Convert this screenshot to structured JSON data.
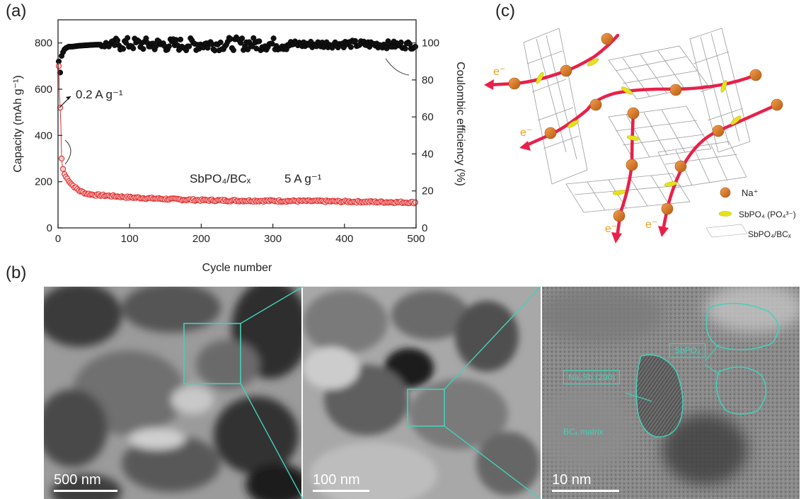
{
  "panels": {
    "a": "(a)",
    "b": "(b)",
    "c": "(c)"
  },
  "chart_data": {
    "type": "scatter",
    "xlabel": "Cycle number",
    "ylabel_left": "Capacity (mAh g⁻¹)",
    "ylabel_right": "Coulombic efficiency (%)",
    "xlim": [
      0,
      500
    ],
    "ylim_left": [
      0,
      900
    ],
    "ylim_right": [
      0,
      112.5
    ],
    "xticks": [
      0,
      100,
      200,
      300,
      400,
      500
    ],
    "yticks_left": [
      0,
      200,
      400,
      600,
      800
    ],
    "yticks_right": [
      0,
      20,
      40,
      60,
      80,
      100
    ],
    "annotations": {
      "rate_initial": "0.2 A g⁻¹",
      "material": "SbPO₄/BCₓ",
      "rate_main": "5 A g⁻¹"
    },
    "series": [
      {
        "axis": "left",
        "color": "#e03030",
        "x": [
          1,
          2,
          3,
          4,
          5,
          6,
          8,
          10,
          15,
          20,
          30,
          40,
          50,
          75,
          100,
          150,
          200,
          250,
          300,
          350,
          400,
          450,
          500
        ],
        "values": [
          700,
          570,
          520,
          440,
          300,
          270,
          240,
          225,
          205,
          185,
          160,
          148,
          143,
          138,
          132,
          125,
          120,
          118,
          117,
          116,
          114,
          112,
          110
        ]
      },
      {
        "axis": "right",
        "color": "#111111",
        "x": [
          1,
          3,
          5,
          8,
          10,
          15,
          20,
          30,
          50,
          75,
          100,
          150,
          200,
          250,
          300,
          350,
          400,
          450,
          500
        ],
        "values": [
          90,
          84,
          93,
          96,
          97,
          98,
          98,
          98.5,
          99,
          99.2,
          99.5,
          99,
          99.3,
          99.6,
          99.4,
          99.2,
          99.5,
          99.1,
          98.8
        ]
      }
    ]
  },
  "scheme": {
    "electron": "e⁻",
    "legend_na": "Na⁺",
    "legend_sbpo4": "SbPO₄ (PO₄³⁻)",
    "legend_composite": "SbPO₄/BCₓ"
  },
  "micro": {
    "scale1": "500 nm",
    "scale2": "100 nm",
    "scale3": "10 nm",
    "label_na3sb": "Na₃Sb (200)",
    "label_sbpo4": "SbPO₄",
    "label_matrix": "BCₓ matrix"
  }
}
